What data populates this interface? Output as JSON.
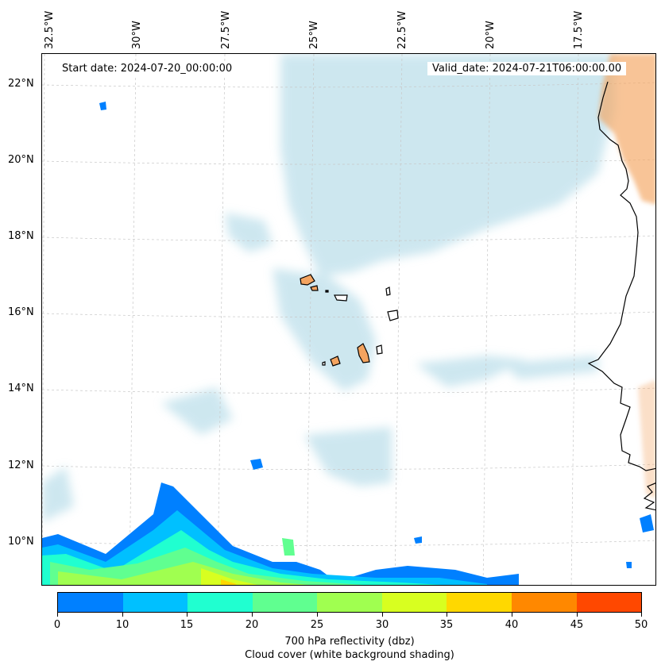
{
  "map": {
    "start_label": "Start date: 2024-07-20_00:00:00",
    "valid_label": "Valid_date: 2024-07-21T06:00:00.00",
    "lon_labels": [
      "32.5°W",
      "30°W",
      "27.5°W",
      "25°W",
      "22.5°W",
      "20°W",
      "17.5°W"
    ],
    "lat_labels": [
      "22°N",
      "20°N",
      "18°N",
      "16°N",
      "14°N",
      "12°N",
      "10°N"
    ],
    "colors": {
      "cloud": "#add8e6",
      "land_warm": "#f4a460",
      "coast": "#000000",
      "grid": "#c8c8c8"
    }
  },
  "colorbar": {
    "ticks": [
      "0",
      "10",
      "15",
      "20",
      "25",
      "30",
      "35",
      "40",
      "45",
      "50"
    ],
    "colors": [
      "#0080ff",
      "#00c0ff",
      "#20ffd0",
      "#60ff90",
      "#a0ff50",
      "#d8ff20",
      "#ffd800",
      "#ff8800",
      "#ff4800"
    ],
    "label": "700 hPa reflectivity (dbz)",
    "sublabel": "Cloud cover (white background shading)"
  }
}
